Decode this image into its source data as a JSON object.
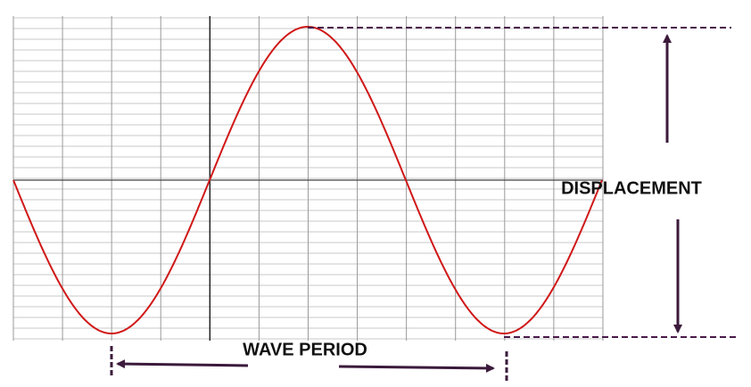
{
  "labels": {
    "displacement": "DISPLACEMENT",
    "wave_period": "WAVE PERIOD"
  }
}
